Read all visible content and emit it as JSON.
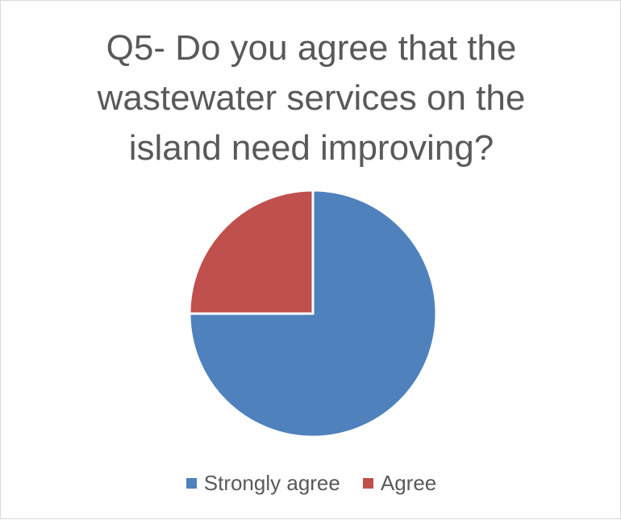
{
  "chart_data": {
    "type": "pie",
    "title_lines": [
      "Q5- Do you agree that the",
      "wastewater services on the",
      "island need improving?"
    ],
    "categories": [
      "Strongly agree",
      "Agree"
    ],
    "values": [
      75,
      25
    ],
    "colors": [
      "#4f81bd",
      "#c0504d"
    ],
    "legend_position": "bottom",
    "start_angle_deg": 0,
    "direction": "clockwise"
  }
}
